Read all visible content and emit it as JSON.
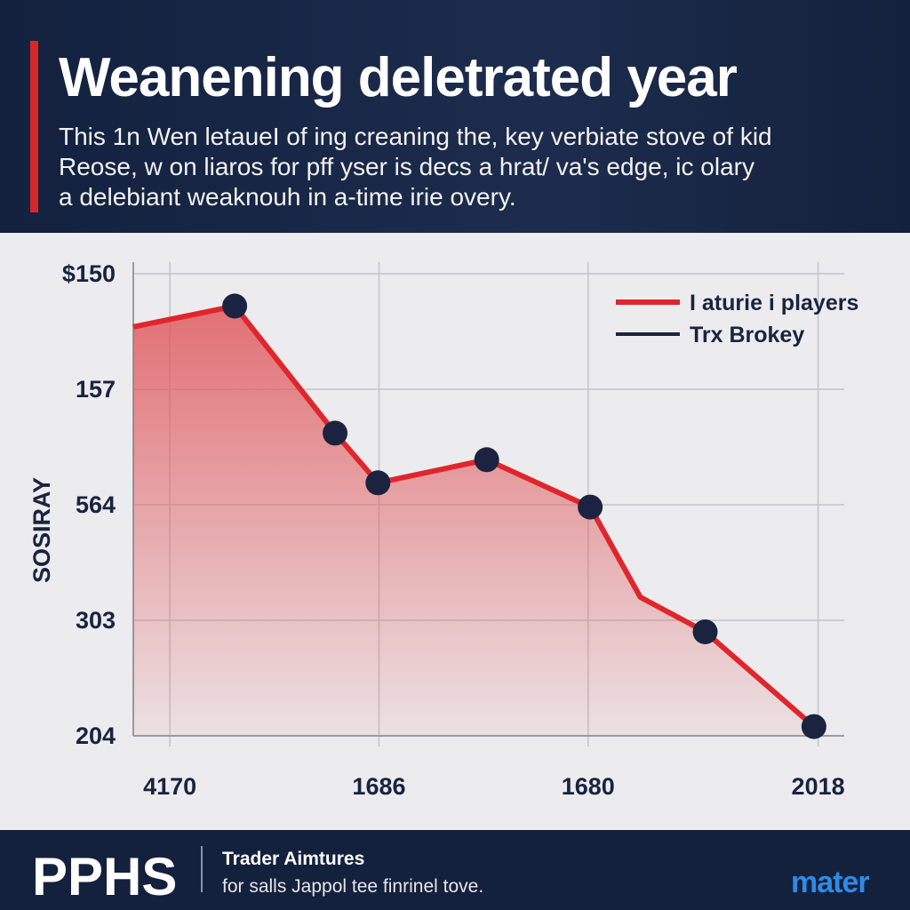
{
  "header": {
    "title": "Weanening deletrated year",
    "subtitle": [
      "This 1n Wen letaueI of ing creaning the, key verbiate stove of kid",
      "Reose, w on liaros for pff yser is decs a hrat/ va's edge, ic olary",
      "a delebiant weaknouh in a-time irie overy."
    ]
  },
  "chart_data": {
    "type": "line",
    "y_label": "SOSIRAY",
    "x": [
      -0.35,
      0.62,
      1.58,
      1.99,
      3.03,
      4.02,
      4.5,
      5.12,
      6.16
    ],
    "series": [
      {
        "name": "I aturie i players",
        "color": "#e0262c",
        "values": [
          3.54,
          3.72,
          2.62,
          2.19,
          2.39,
          1.98,
          1.2,
          0.9,
          0.08
        ]
      },
      {
        "name": "Trx Brokey",
        "color": "#1c2340",
        "values": [
          null,
          3.72,
          2.62,
          2.19,
          2.39,
          1.98,
          null,
          0.9,
          0.08
        ]
      }
    ],
    "xlim": [
      -0.35,
      6.45
    ],
    "xticks": [
      {
        "value": 0,
        "label": "4170"
      },
      {
        "value": 2,
        "label": "1686"
      },
      {
        "value": 4,
        "label": "1680"
      },
      {
        "value": 6.2,
        "label": "2018"
      }
    ],
    "ylim": [
      0,
      4.1
    ],
    "yticks": [
      {
        "value": 0,
        "label": "204"
      },
      {
        "value": 1,
        "label": "303"
      },
      {
        "value": 2,
        "label": "564"
      },
      {
        "value": 3,
        "label": "157"
      },
      {
        "value": 4,
        "label": "$150"
      }
    ],
    "grid": true,
    "legend": "upper right"
  },
  "footer": {
    "brand": "PPHS",
    "heading": "Trader Aimtures",
    "text": "for salls Jappol tee finrinel tove.",
    "logo": "mater"
  }
}
